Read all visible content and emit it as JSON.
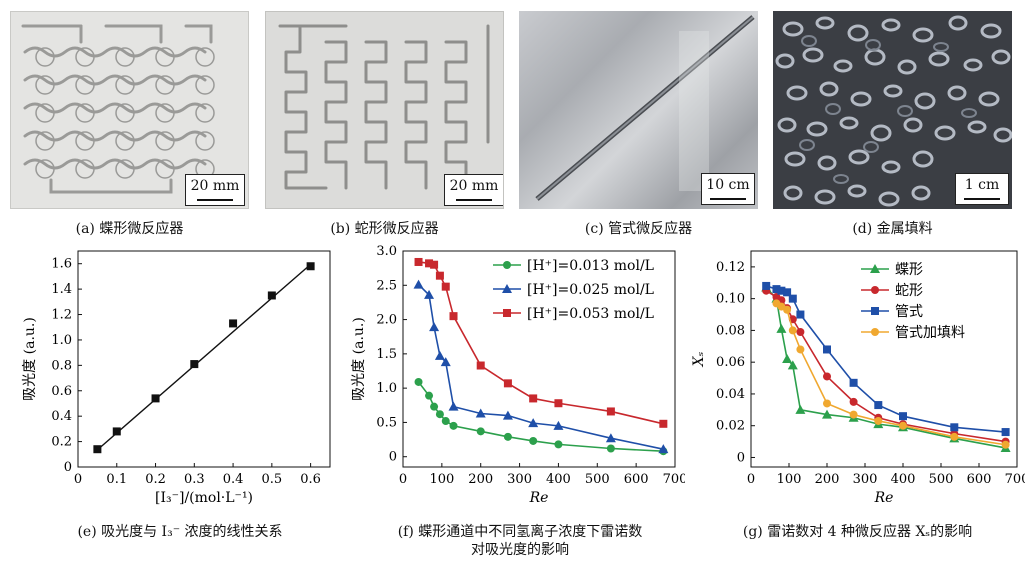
{
  "photos": {
    "a": {
      "scale": "20 mm",
      "caption": "(a) 蝶形微反应器"
    },
    "b": {
      "scale": "20 mm",
      "caption": "(b) 蛇形微反应器"
    },
    "c": {
      "scale": "10 cm",
      "caption": "(c) 管式微反应器"
    },
    "d": {
      "scale": "1 cm",
      "caption": "(d) 金属填料"
    }
  },
  "captions": {
    "e": "(e) 吸光度与 I₃⁻ 浓度的线性关系",
    "f1": "(f) 蝶形通道中不同氢离子浓度下雷诺数",
    "f2": "对吸光度的影响",
    "g": "(g) 雷诺数对 4 种微反应器 Xₛ的影响"
  },
  "chart_data": [
    {
      "type": "scatter",
      "xlabel": "[I₃⁻]/(mol·L⁻¹)",
      "ylabel": "吸光度 (a.u.)",
      "xlim": [
        0,
        0.65
      ],
      "ylim": [
        0,
        1.7
      ],
      "xticks": [
        "0",
        "0.1",
        "0.2",
        "0.3",
        "0.4",
        "0.5",
        "0.6"
      ],
      "yticks": [
        "0",
        "0.2",
        "0.4",
        "0.6",
        "0.8",
        "1.0",
        "1.2",
        "1.4",
        "1.6"
      ],
      "x": [
        0.05,
        0.1,
        0.2,
        0.3,
        0.4,
        0.5,
        0.6
      ],
      "y": [
        0.14,
        0.28,
        0.54,
        0.81,
        1.13,
        1.35,
        1.58
      ],
      "fit_line": {
        "x": [
          0.05,
          0.6
        ],
        "y": [
          0.135,
          1.595
        ]
      },
      "color": "#111111"
    },
    {
      "type": "line",
      "xlabel": "Re",
      "ylabel": "吸光度 (a.u.)",
      "xlim": [
        0,
        700
      ],
      "ylim": [
        -0.15,
        3.0
      ],
      "xticks": [
        "0",
        "100",
        "200",
        "300",
        "400",
        "500",
        "600",
        "700"
      ],
      "yticks": [
        "0",
        "0.5",
        "1.0",
        "1.5",
        "2.0",
        "2.5",
        "3.0"
      ],
      "legend_position": "top-right",
      "series": [
        {
          "name": "[H⁺]=0.013 mol/L",
          "color": "#2ca04c",
          "marker": "circle",
          "x": [
            40,
            67,
            80,
            95,
            110,
            130,
            200,
            270,
            335,
            400,
            535,
            670
          ],
          "y": [
            1.09,
            0.89,
            0.73,
            0.62,
            0.52,
            0.45,
            0.37,
            0.29,
            0.23,
            0.18,
            0.12,
            0.08
          ]
        },
        {
          "name": "[H⁺]=0.025 mol/L",
          "color": "#1f4fa8",
          "marker": "triangle",
          "x": [
            40,
            67,
            80,
            95,
            110,
            130,
            200,
            270,
            335,
            400,
            535,
            670
          ],
          "y": [
            2.51,
            2.36,
            1.89,
            1.47,
            1.38,
            0.73,
            0.63,
            0.6,
            0.49,
            0.45,
            0.27,
            0.11
          ]
        },
        {
          "name": "[H⁺]=0.053 mol/L",
          "color": "#c8282d",
          "marker": "square",
          "x": [
            40,
            67,
            80,
            95,
            110,
            130,
            200,
            270,
            335,
            400,
            535,
            670
          ],
          "y": [
            2.84,
            2.82,
            2.8,
            2.64,
            2.48,
            2.05,
            1.33,
            1.07,
            0.85,
            0.78,
            0.66,
            0.48
          ]
        }
      ]
    },
    {
      "type": "line",
      "xlabel": "Re",
      "ylabel": "Xₛ",
      "xlim": [
        0,
        700
      ],
      "ylim": [
        -0.006,
        0.13
      ],
      "xticks": [
        "0",
        "100",
        "200",
        "300",
        "400",
        "500",
        "600",
        "700"
      ],
      "yticks": [
        "0",
        "0.02",
        "0.04",
        "0.06",
        "0.08",
        "0.10",
        "0.12"
      ],
      "legend_position": "top-right",
      "series": [
        {
          "name": "蝶形",
          "color": "#2ca04c",
          "marker": "triangle",
          "x": [
            40,
            67,
            80,
            95,
            110,
            130,
            200,
            270,
            335,
            400,
            535,
            670
          ],
          "y": [
            0.107,
            0.1,
            0.081,
            0.062,
            0.058,
            0.03,
            0.027,
            0.025,
            0.021,
            0.019,
            0.012,
            0.006
          ]
        },
        {
          "name": "蛇形",
          "color": "#c8282d",
          "marker": "circle",
          "x": [
            40,
            67,
            80,
            95,
            110,
            130,
            200,
            270,
            335,
            400,
            535,
            670
          ],
          "y": [
            0.105,
            0.101,
            0.099,
            0.094,
            0.087,
            0.079,
            0.051,
            0.035,
            0.025,
            0.021,
            0.015,
            0.01
          ]
        },
        {
          "name": "管式",
          "color": "#1f4fa8",
          "marker": "square",
          "x": [
            40,
            67,
            80,
            95,
            110,
            130,
            200,
            270,
            335,
            400,
            535,
            670
          ],
          "y": [
            0.108,
            0.106,
            0.105,
            0.104,
            0.1,
            0.09,
            0.068,
            0.047,
            0.033,
            0.026,
            0.019,
            0.016
          ]
        },
        {
          "name": "管式加填料",
          "color": "#f0a830",
          "marker": "circle",
          "x": [
            67,
            80,
            95,
            110,
            130,
            200,
            270,
            335,
            400,
            535,
            670
          ],
          "y": [
            0.097,
            0.095,
            0.093,
            0.08,
            0.068,
            0.034,
            0.027,
            0.023,
            0.02,
            0.013,
            0.008
          ]
        }
      ]
    }
  ]
}
